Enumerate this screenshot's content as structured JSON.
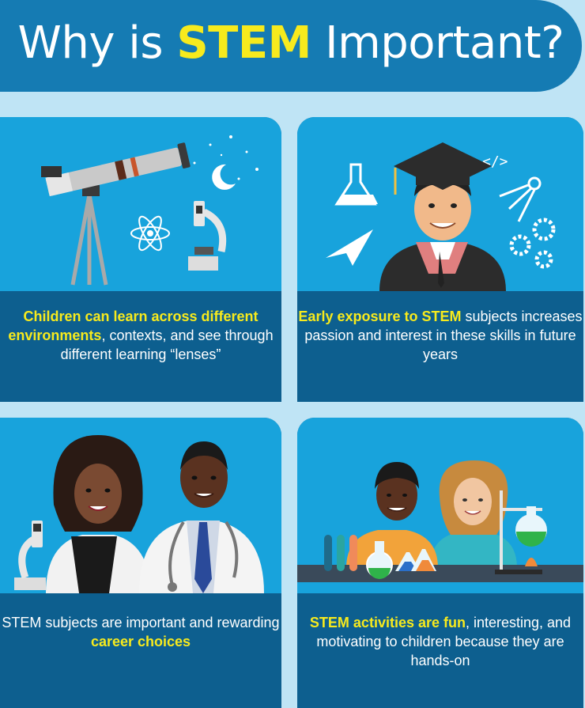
{
  "header": {
    "title_prefix": "Why is ",
    "title_highlight": "STEM",
    "title_suffix": " Important?"
  },
  "panels": [
    {
      "highlight": "Children can learn across different environments",
      "text": ", contexts, and see through different learning “lenses”"
    },
    {
      "highlight": "Early exposure to STEM",
      "text": " subjects increases passion and interest in these skills in future years"
    },
    {
      "text": "STEM subjects are important and rewarding ",
      "highlight": "career choices"
    },
    {
      "highlight": "STEM activities are fun",
      "text": ", interesting, and motivating to children because they are hands-on"
    }
  ],
  "icons": {
    "code_tag": "</>"
  },
  "colors": {
    "title_bar": "#157bb3",
    "panel_top": "#18a3dc",
    "panel_bottom": "#0d5f8f",
    "highlight": "#f7ea1d",
    "background": "#bfe4f5"
  }
}
